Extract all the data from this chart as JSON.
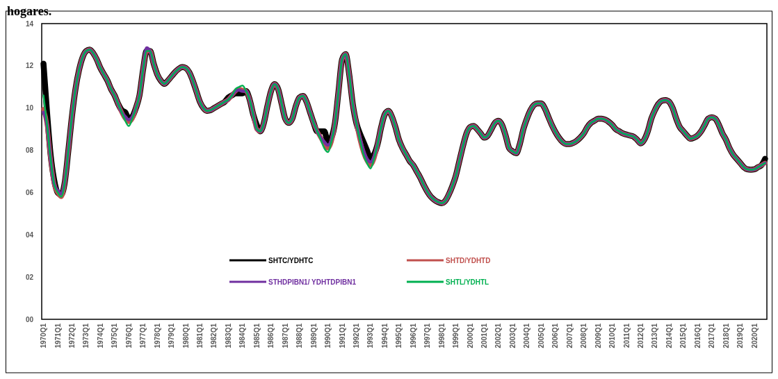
{
  "chart_data": {
    "type": "line",
    "title": "hogares.",
    "categories": [
      "1970Q1",
      null,
      null,
      null,
      "1971Q1",
      null,
      null,
      null,
      "1972Q1",
      null,
      null,
      null,
      "1973Q1",
      null,
      null,
      null,
      "1974Q1",
      null,
      null,
      null,
      "1975Q1",
      null,
      null,
      null,
      "1976Q1",
      null,
      null,
      null,
      "1977Q1",
      null,
      null,
      null,
      "1978Q1",
      null,
      null,
      null,
      "1979Q1",
      null,
      null,
      null,
      "1980Q1",
      null,
      null,
      null,
      "1981Q1",
      null,
      null,
      null,
      "1982Q1",
      null,
      null,
      null,
      "1983Q1",
      null,
      null,
      null,
      "1984Q1",
      null,
      null,
      null,
      "1985Q1",
      null,
      null,
      null,
      "1986Q1",
      null,
      null,
      null,
      "1987Q1",
      null,
      null,
      null,
      "1988Q1",
      null,
      null,
      null,
      "1989Q1",
      null,
      null,
      null,
      "1990Q1",
      null,
      null,
      null,
      "1991Q1",
      null,
      null,
      null,
      "1992Q1",
      null,
      null,
      null,
      "1993Q1",
      null,
      null,
      null,
      "1994Q1",
      null,
      null,
      null,
      "1995Q1",
      null,
      null,
      null,
      "1996Q1",
      null,
      null,
      null,
      "1997Q1",
      null,
      null,
      null,
      "1998Q1",
      null,
      null,
      null,
      "1999Q1",
      null,
      null,
      null,
      "2000Q1",
      null,
      null,
      null,
      "2001Q1",
      null,
      null,
      null,
      "2002Q1",
      null,
      null,
      null,
      "2003Q1",
      null,
      null,
      null,
      "2004Q1",
      null,
      null,
      null,
      "2005Q1",
      null,
      null,
      null,
      "2006Q1",
      null,
      null,
      null,
      "2007Q1",
      null,
      null,
      null,
      "2008Q1",
      null,
      null,
      null,
      "2009Q1",
      null,
      null,
      null,
      "2010Q1",
      null,
      null,
      null,
      "2011Q1",
      null,
      null,
      null,
      "2012Q1",
      null,
      null,
      null,
      "2013Q1",
      null,
      null,
      null,
      "2014Q1",
      null,
      null,
      null,
      "2015Q1",
      null,
      null,
      null,
      "2016Q1",
      null,
      null,
      null,
      "2017Q1",
      null,
      null,
      null,
      "2018Q1",
      null,
      null,
      null,
      "2019Q1",
      null,
      null,
      null,
      "2020Q1",
      null,
      null,
      null
    ],
    "series": [
      {
        "name": "SHTC/YDHTC",
        "color": "#000000",
        "values": [
          12.1,
          9.8,
          7.8,
          6.6,
          6.0,
          5.9,
          6.5,
          8.0,
          9.6,
          10.9,
          11.8,
          12.4,
          12.7,
          12.77,
          12.6,
          12.3,
          11.9,
          11.6,
          11.3,
          10.9,
          10.6,
          10.2,
          9.9,
          9.8,
          9.5,
          9.6,
          10.0,
          10.6,
          11.8,
          12.7,
          12.7,
          12.1,
          11.6,
          11.3,
          11.15,
          11.3,
          11.5,
          11.7,
          11.85,
          11.95,
          11.9,
          11.7,
          11.3,
          10.8,
          10.3,
          10.0,
          9.87,
          9.9,
          10.0,
          10.1,
          10.2,
          10.3,
          10.5,
          10.6,
          10.7,
          10.7,
          10.7,
          10.8,
          10.4,
          9.7,
          9.2,
          8.9,
          9.3,
          10.1,
          10.8,
          11.13,
          10.9,
          10.2,
          9.5,
          9.3,
          9.5,
          10.1,
          10.5,
          10.57,
          10.3,
          9.8,
          9.3,
          8.9,
          8.9,
          8.9,
          8.4,
          8.6,
          9.3,
          10.8,
          12.3,
          12.55,
          11.6,
          10.2,
          9.3,
          8.8,
          8.4,
          8.0,
          7.6,
          7.8,
          8.3,
          9.1,
          9.7,
          9.87,
          9.6,
          9.1,
          8.5,
          8.1,
          7.8,
          7.5,
          7.3,
          7.0,
          6.7,
          6.35,
          6.04,
          5.8,
          5.65,
          5.55,
          5.5,
          5.6,
          5.9,
          6.3,
          6.8,
          7.5,
          8.2,
          8.8,
          9.1,
          9.15,
          9.0,
          8.8,
          8.6,
          8.7,
          9.0,
          9.3,
          9.4,
          9.2,
          8.7,
          8.1,
          7.95,
          7.86,
          8.3,
          9.0,
          9.5,
          9.9,
          10.15,
          10.22,
          10.22,
          10.0,
          9.6,
          9.2,
          8.87,
          8.6,
          8.4,
          8.3,
          8.3,
          8.35,
          8.45,
          8.6,
          8.8,
          9.1,
          9.3,
          9.4,
          9.5,
          9.5,
          9.45,
          9.35,
          9.2,
          9.0,
          8.9,
          8.8,
          8.75,
          8.7,
          8.65,
          8.5,
          8.33,
          8.5,
          8.9,
          9.5,
          9.9,
          10.2,
          10.35,
          10.38,
          10.3,
          10.0,
          9.5,
          9.1,
          8.9,
          8.7,
          8.55,
          8.6,
          8.7,
          8.9,
          9.2,
          9.5,
          9.56,
          9.5,
          9.2,
          8.8,
          8.5,
          8.1,
          7.8,
          7.6,
          7.4,
          7.2,
          7.1,
          7.08,
          7.1,
          7.2,
          7.3,
          7.6
        ]
      },
      {
        "name": "SHTD/YDHTD",
        "color": "#c0504d",
        "values": [
          9.95,
          9.2,
          7.6,
          6.4,
          6.0,
          5.8,
          6.5,
          8.0,
          9.6,
          10.9,
          11.8,
          12.4,
          12.7,
          12.77,
          12.6,
          12.3,
          11.9,
          11.6,
          11.3,
          10.9,
          10.6,
          10.2,
          9.8,
          9.5,
          9.35,
          9.5,
          10.0,
          10.6,
          11.8,
          12.7,
          12.7,
          12.1,
          11.6,
          11.3,
          11.15,
          11.3,
          11.5,
          11.7,
          11.85,
          11.95,
          11.9,
          11.7,
          11.3,
          10.8,
          10.3,
          10.0,
          9.87,
          9.9,
          10.0,
          10.1,
          10.2,
          10.3,
          10.4,
          10.6,
          10.8,
          10.9,
          10.85,
          10.8,
          10.4,
          9.7,
          9.0,
          8.9,
          9.3,
          10.1,
          10.8,
          11.13,
          10.9,
          10.2,
          9.5,
          9.3,
          9.5,
          10.1,
          10.5,
          10.57,
          10.3,
          9.8,
          9.3,
          8.9,
          8.6,
          8.3,
          8.1,
          8.4,
          9.3,
          10.8,
          12.3,
          12.55,
          11.6,
          10.2,
          9.3,
          8.5,
          7.9,
          7.5,
          7.3,
          7.6,
          8.3,
          9.1,
          9.7,
          9.87,
          9.6,
          9.1,
          8.5,
          8.1,
          7.8,
          7.5,
          7.3,
          7.0,
          6.7,
          6.35,
          6.04,
          5.8,
          5.65,
          5.55,
          5.5,
          5.6,
          5.9,
          6.3,
          6.8,
          7.5,
          8.2,
          8.8,
          9.1,
          9.15,
          9.0,
          8.8,
          8.6,
          8.7,
          9.0,
          9.3,
          9.4,
          9.2,
          8.7,
          8.1,
          7.95,
          7.86,
          8.3,
          9.0,
          9.5,
          9.9,
          10.15,
          10.22,
          10.22,
          10.0,
          9.6,
          9.2,
          8.87,
          8.6,
          8.4,
          8.3,
          8.3,
          8.35,
          8.45,
          8.6,
          8.8,
          9.1,
          9.3,
          9.4,
          9.5,
          9.5,
          9.45,
          9.35,
          9.2,
          9.0,
          8.9,
          8.8,
          8.75,
          8.7,
          8.65,
          8.5,
          8.33,
          8.5,
          8.9,
          9.5,
          9.9,
          10.2,
          10.35,
          10.38,
          10.3,
          10.0,
          9.5,
          9.1,
          8.9,
          8.7,
          8.55,
          8.6,
          8.7,
          8.9,
          9.2,
          9.5,
          9.56,
          9.5,
          9.2,
          8.8,
          8.5,
          8.1,
          7.8,
          7.6,
          7.4,
          7.2,
          7.1,
          7.08,
          7.1,
          7.2,
          7.3,
          7.4
        ]
      },
      {
        "name": "STHDPIBN1/ YDHTDPIBN1",
        "color": "#7030a0",
        "values": [
          9.8,
          9.2,
          7.6,
          6.4,
          6.1,
          5.95,
          6.5,
          8.0,
          9.6,
          10.9,
          11.8,
          12.4,
          12.7,
          12.77,
          12.6,
          12.3,
          11.9,
          11.6,
          11.3,
          10.9,
          10.6,
          10.2,
          9.8,
          9.6,
          9.45,
          9.6,
          10.0,
          10.6,
          11.8,
          12.85,
          12.7,
          12.1,
          11.6,
          11.3,
          11.15,
          11.3,
          11.5,
          11.7,
          11.85,
          11.95,
          11.9,
          11.7,
          11.3,
          10.8,
          10.3,
          10.0,
          9.87,
          9.9,
          10.0,
          10.1,
          10.2,
          10.3,
          10.4,
          10.6,
          10.8,
          10.85,
          10.8,
          10.8,
          10.4,
          9.7,
          9.0,
          8.9,
          9.3,
          10.1,
          10.8,
          11.13,
          10.9,
          10.2,
          9.5,
          9.3,
          9.5,
          10.1,
          10.5,
          10.57,
          10.3,
          9.8,
          9.3,
          8.9,
          8.6,
          8.4,
          8.25,
          8.5,
          9.3,
          10.8,
          12.3,
          12.55,
          11.6,
          10.2,
          9.3,
          8.6,
          8.0,
          7.6,
          7.45,
          7.7,
          8.3,
          9.1,
          9.7,
          9.87,
          9.6,
          9.1,
          8.5,
          8.1,
          7.8,
          7.5,
          7.3,
          7.0,
          6.7,
          6.35,
          6.04,
          5.8,
          5.65,
          5.55,
          5.5,
          5.6,
          5.9,
          6.3,
          6.8,
          7.5,
          8.2,
          8.8,
          9.1,
          9.15,
          9.0,
          8.8,
          8.6,
          8.7,
          9.0,
          9.3,
          9.4,
          9.2,
          8.7,
          8.1,
          7.95,
          7.86,
          8.3,
          9.0,
          9.5,
          9.9,
          10.15,
          10.22,
          10.22,
          10.0,
          9.6,
          9.2,
          8.87,
          8.6,
          8.4,
          8.3,
          8.3,
          8.35,
          8.45,
          8.6,
          8.8,
          9.1,
          9.3,
          9.4,
          9.5,
          9.5,
          9.45,
          9.35,
          9.2,
          9.0,
          8.9,
          8.8,
          8.75,
          8.7,
          8.65,
          8.5,
          8.33,
          8.5,
          8.9,
          9.5,
          9.9,
          10.2,
          10.35,
          10.38,
          10.3,
          10.0,
          9.5,
          9.1,
          8.9,
          8.7,
          8.55,
          8.6,
          8.7,
          8.9,
          9.2,
          9.5,
          9.56,
          9.5,
          9.2,
          8.8,
          8.5,
          8.1,
          7.8,
          7.6,
          7.4,
          7.2,
          7.1,
          7.08,
          7.1,
          7.2,
          7.3,
          7.4
        ]
      },
      {
        "name": "SHTL/YDHTL",
        "color": "#00b050",
        "values": [
          10.6,
          9.2,
          7.6,
          6.4,
          6.0,
          5.8,
          6.5,
          8.0,
          9.6,
          10.9,
          11.8,
          12.4,
          12.7,
          12.77,
          12.6,
          12.3,
          11.9,
          11.6,
          11.3,
          10.9,
          10.6,
          10.2,
          9.8,
          9.4,
          9.15,
          9.5,
          10.0,
          10.6,
          11.8,
          12.7,
          12.7,
          12.1,
          11.6,
          11.3,
          11.15,
          11.3,
          11.5,
          11.7,
          11.85,
          11.95,
          11.9,
          11.7,
          11.3,
          10.8,
          10.3,
          10.0,
          9.87,
          9.9,
          10.0,
          10.1,
          10.2,
          10.3,
          10.4,
          10.6,
          10.9,
          11.0,
          11.07,
          10.8,
          10.4,
          9.7,
          9.0,
          8.9,
          9.3,
          10.1,
          10.8,
          11.13,
          10.9,
          10.2,
          9.5,
          9.3,
          9.5,
          10.1,
          10.5,
          10.57,
          10.3,
          9.8,
          9.3,
          8.9,
          8.5,
          8.1,
          7.92,
          8.4,
          9.3,
          10.8,
          12.3,
          12.55,
          11.6,
          10.2,
          9.3,
          8.5,
          7.8,
          7.4,
          7.14,
          7.6,
          8.3,
          9.1,
          9.7,
          9.87,
          9.6,
          9.1,
          8.5,
          8.1,
          7.8,
          7.5,
          7.3,
          7.0,
          6.7,
          6.35,
          6.04,
          5.8,
          5.65,
          5.55,
          5.5,
          5.6,
          5.9,
          6.3,
          6.8,
          7.5,
          8.2,
          8.8,
          9.1,
          9.15,
          9.0,
          8.8,
          8.6,
          8.7,
          9.0,
          9.3,
          9.4,
          9.2,
          8.7,
          8.1,
          7.95,
          7.86,
          8.3,
          9.0,
          9.5,
          9.9,
          10.15,
          10.22,
          10.22,
          10.0,
          9.6,
          9.2,
          8.87,
          8.6,
          8.4,
          8.3,
          8.3,
          8.35,
          8.45,
          8.6,
          8.8,
          9.1,
          9.3,
          9.4,
          9.5,
          9.5,
          9.45,
          9.35,
          9.2,
          9.0,
          8.9,
          8.8,
          8.75,
          8.7,
          8.65,
          8.5,
          8.33,
          8.5,
          8.9,
          9.5,
          9.9,
          10.2,
          10.35,
          10.38,
          10.3,
          10.0,
          9.5,
          9.1,
          8.9,
          8.7,
          8.55,
          8.6,
          8.7,
          8.9,
          9.2,
          9.5,
          9.56,
          9.5,
          9.2,
          8.8,
          8.5,
          8.1,
          7.8,
          7.6,
          7.4,
          7.2,
          7.1,
          7.08,
          7.1,
          7.2,
          7.3,
          7.4
        ]
      }
    ],
    "ylim": [
      0,
      14
    ],
    "yticks": [
      {
        "value": 0,
        "label": "00"
      },
      {
        "value": 2,
        "label": "02"
      },
      {
        "value": 4,
        "label": "04"
      },
      {
        "value": 6,
        "label": "06"
      },
      {
        "value": 8,
        "label": "08"
      },
      {
        "value": 10,
        "label": "10"
      },
      {
        "value": 12,
        "label": "12"
      },
      {
        "value": 14,
        "label": "14"
      }
    ],
    "legend": "bottom",
    "line_style": "solid",
    "marker": "none"
  }
}
